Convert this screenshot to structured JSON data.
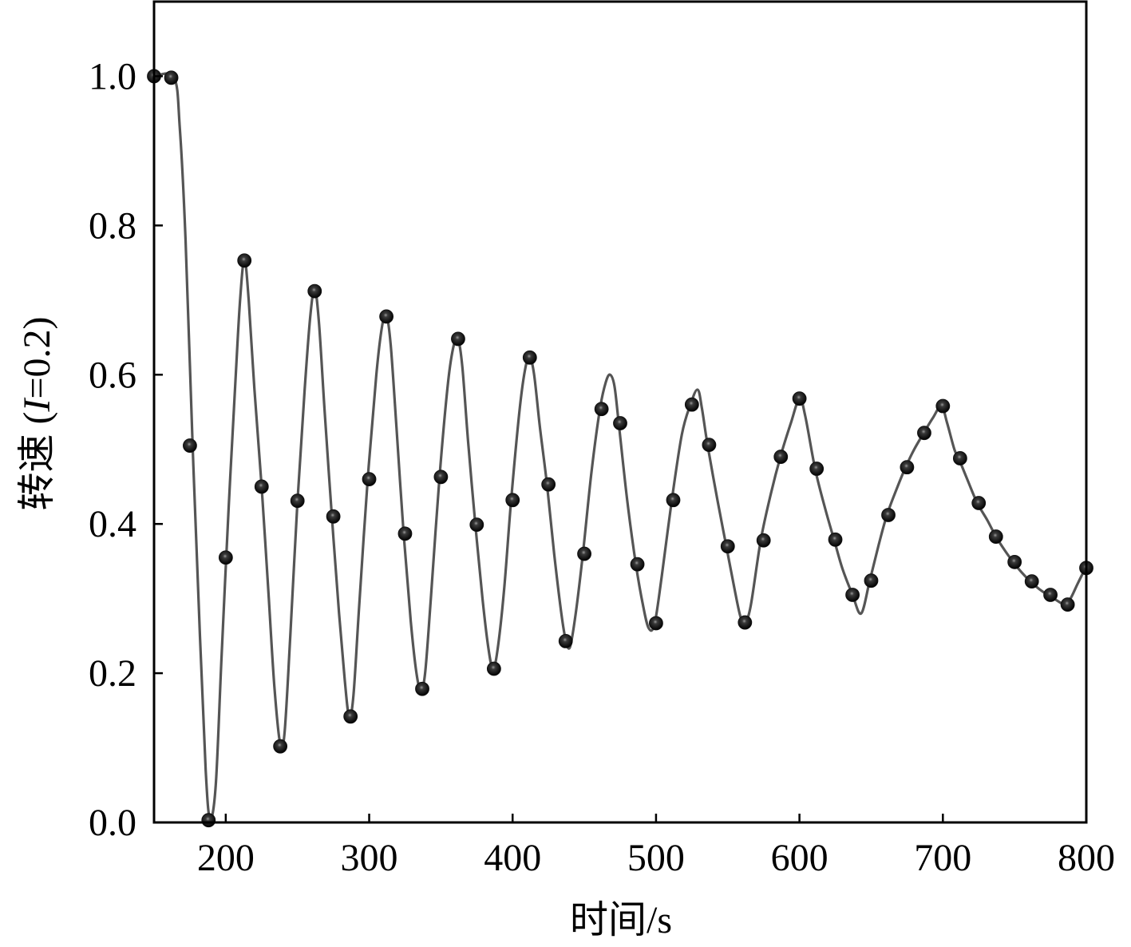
{
  "chart_data": {
    "type": "line",
    "title": "",
    "xlabel": "时间/s",
    "ylabel_prefix": "转速 (",
    "ylabel_var": "I",
    "ylabel_suffix": "=0.2)",
    "xlim": [
      150,
      800
    ],
    "ylim": [
      0.0,
      1.1
    ],
    "xticks": [
      200,
      300,
      400,
      500,
      600,
      700,
      800
    ],
    "xtick_labels": [
      "200",
      "300",
      "400",
      "500",
      "600",
      "700",
      "800"
    ],
    "yticks": [
      0.0,
      0.2,
      0.4,
      0.6,
      0.8,
      1.0
    ],
    "ytick_labels": [
      "0.0",
      "0.2",
      "0.4",
      "0.6",
      "0.8",
      "1.0"
    ],
    "grid": false,
    "line_color": "#555555",
    "marker_color": "#111111",
    "series": [
      {
        "style": "line",
        "points": [
          [
            150,
            1.0
          ],
          [
            164,
            0.998
          ],
          [
            168,
            0.93
          ],
          [
            172,
            0.78
          ],
          [
            177,
            0.5
          ],
          [
            182,
            0.25
          ],
          [
            186,
            0.07
          ],
          [
            189,
            0.005
          ],
          [
            193,
            0.05
          ],
          [
            197,
            0.22
          ],
          [
            202,
            0.42
          ],
          [
            207,
            0.6
          ],
          [
            210,
            0.7
          ],
          [
            213,
            0.755
          ],
          [
            216,
            0.7
          ],
          [
            220,
            0.58
          ],
          [
            225,
            0.45
          ],
          [
            230,
            0.3
          ],
          [
            234,
            0.18
          ],
          [
            238,
            0.105
          ],
          [
            241,
            0.12
          ],
          [
            245,
            0.25
          ],
          [
            250,
            0.43
          ],
          [
            255,
            0.58
          ],
          [
            259,
            0.68
          ],
          [
            262,
            0.715
          ],
          [
            265,
            0.67
          ],
          [
            269,
            0.55
          ],
          [
            274,
            0.41
          ],
          [
            279,
            0.28
          ],
          [
            283,
            0.19
          ],
          [
            286,
            0.142
          ],
          [
            289,
            0.17
          ],
          [
            293,
            0.29
          ],
          [
            299,
            0.46
          ],
          [
            305,
            0.6
          ],
          [
            309,
            0.665
          ],
          [
            312,
            0.68
          ],
          [
            315,
            0.64
          ],
          [
            319,
            0.53
          ],
          [
            324,
            0.387
          ],
          [
            329,
            0.27
          ],
          [
            333,
            0.2
          ],
          [
            336,
            0.178
          ],
          [
            339,
            0.2
          ],
          [
            343,
            0.3
          ],
          [
            349,
            0.462
          ],
          [
            355,
            0.59
          ],
          [
            359,
            0.64
          ],
          [
            362,
            0.648
          ],
          [
            365,
            0.61
          ],
          [
            369,
            0.51
          ],
          [
            374,
            0.4
          ],
          [
            379,
            0.3
          ],
          [
            383,
            0.235
          ],
          [
            386,
            0.207
          ],
          [
            389,
            0.225
          ],
          [
            394,
            0.31
          ],
          [
            399,
            0.432
          ],
          [
            405,
            0.555
          ],
          [
            409,
            0.61
          ],
          [
            412,
            0.623
          ],
          [
            415,
            0.6
          ],
          [
            419,
            0.53
          ],
          [
            424,
            0.452
          ],
          [
            429,
            0.36
          ],
          [
            434,
            0.28
          ],
          [
            437,
            0.245
          ],
          [
            440,
            0.235
          ],
          [
            444,
            0.28
          ],
          [
            449,
            0.36
          ],
          [
            455,
            0.47
          ],
          [
            461,
            0.555
          ],
          [
            465,
            0.59
          ],
          [
            468,
            0.6
          ],
          [
            471,
            0.585
          ],
          [
            474,
            0.535
          ],
          [
            480,
            0.43
          ],
          [
            486,
            0.345
          ],
          [
            491,
            0.29
          ],
          [
            495,
            0.26
          ],
          [
            499,
            0.266
          ],
          [
            504,
            0.33
          ],
          [
            511,
            0.432
          ],
          [
            518,
            0.52
          ],
          [
            524,
            0.56
          ],
          [
            529,
            0.58
          ],
          [
            532,
            0.555
          ],
          [
            536,
            0.505
          ],
          [
            543,
            0.43
          ],
          [
            549,
            0.37
          ],
          [
            555,
            0.31
          ],
          [
            559,
            0.275
          ],
          [
            562,
            0.268
          ],
          [
            566,
            0.29
          ],
          [
            573,
            0.378
          ],
          [
            580,
            0.44
          ],
          [
            587,
            0.492
          ],
          [
            594,
            0.535
          ],
          [
            600,
            0.568
          ],
          [
            604,
            0.545
          ],
          [
            611,
            0.473
          ],
          [
            618,
            0.42
          ],
          [
            624,
            0.38
          ],
          [
            630,
            0.34
          ],
          [
            637,
            0.305
          ],
          [
            643,
            0.28
          ],
          [
            649,
            0.324
          ],
          [
            655,
            0.37
          ],
          [
            661,
            0.412
          ],
          [
            668,
            0.448
          ],
          [
            674,
            0.476
          ],
          [
            680,
            0.5
          ],
          [
            687,
            0.523
          ],
          [
            693,
            0.542
          ],
          [
            699,
            0.558
          ],
          [
            703,
            0.535
          ],
          [
            708,
            0.5
          ],
          [
            711,
            0.488
          ],
          [
            718,
            0.455
          ],
          [
            724,
            0.428
          ],
          [
            731,
            0.405
          ],
          [
            737,
            0.383
          ],
          [
            743,
            0.365
          ],
          [
            749,
            0.349
          ],
          [
            755,
            0.335
          ],
          [
            761,
            0.323
          ],
          [
            767,
            0.313
          ],
          [
            773,
            0.305
          ],
          [
            779,
            0.298
          ],
          [
            785,
            0.292
          ],
          [
            789,
            0.3
          ],
          [
            794,
            0.32
          ],
          [
            800,
            0.343
          ]
        ]
      },
      {
        "style": "markers",
        "points": [
          [
            150,
            1.0
          ],
          [
            162,
            0.998
          ],
          [
            175,
            0.505
          ],
          [
            188,
            0.003
          ],
          [
            200,
            0.355
          ],
          [
            213,
            0.753
          ],
          [
            225,
            0.45
          ],
          [
            238,
            0.102
          ],
          [
            250,
            0.431
          ],
          [
            262,
            0.712
          ],
          [
            275,
            0.41
          ],
          [
            287,
            0.142
          ],
          [
            300,
            0.46
          ],
          [
            312,
            0.678
          ],
          [
            325,
            0.387
          ],
          [
            337,
            0.179
          ],
          [
            350,
            0.463
          ],
          [
            362,
            0.648
          ],
          [
            375,
            0.399
          ],
          [
            387,
            0.206
          ],
          [
            400,
            0.432
          ],
          [
            412,
            0.623
          ],
          [
            425,
            0.453
          ],
          [
            437,
            0.243
          ],
          [
            450,
            0.36
          ],
          [
            462,
            0.554
          ],
          [
            475,
            0.535
          ],
          [
            487,
            0.346
          ],
          [
            500,
            0.267
          ],
          [
            512,
            0.432
          ],
          [
            525,
            0.56
          ],
          [
            537,
            0.506
          ],
          [
            550,
            0.37
          ],
          [
            562,
            0.268
          ],
          [
            575,
            0.378
          ],
          [
            587,
            0.49
          ],
          [
            600,
            0.568
          ],
          [
            612,
            0.474
          ],
          [
            625,
            0.379
          ],
          [
            637,
            0.305
          ],
          [
            650,
            0.324
          ],
          [
            662,
            0.412
          ],
          [
            675,
            0.476
          ],
          [
            687,
            0.522
          ],
          [
            700,
            0.558
          ],
          [
            712,
            0.488
          ],
          [
            725,
            0.428
          ],
          [
            737,
            0.383
          ],
          [
            750,
            0.349
          ],
          [
            762,
            0.323
          ],
          [
            775,
            0.305
          ],
          [
            787,
            0.292
          ],
          [
            800,
            0.341
          ]
        ]
      }
    ]
  }
}
